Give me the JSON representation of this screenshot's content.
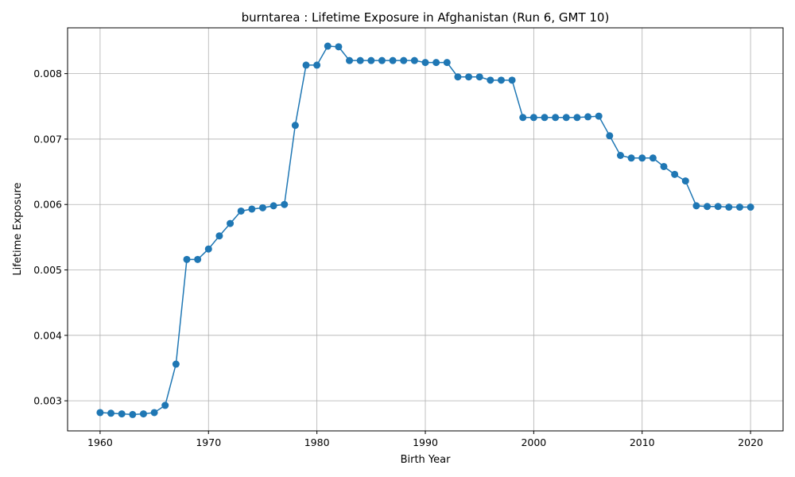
{
  "chart_data": {
    "type": "line",
    "title": "burntarea : Lifetime Exposure in Afghanistan (Run 6, GMT 10)",
    "xlabel": "Birth Year",
    "ylabel": "Lifetime Exposure",
    "xlim": [
      1957,
      2023
    ],
    "ylim": [
      0.00254,
      0.0087
    ],
    "x_ticks": [
      1960,
      1970,
      1980,
      1990,
      2000,
      2010,
      2020
    ],
    "y_ticks": [
      0.003,
      0.004,
      0.005,
      0.006,
      0.007,
      0.008
    ],
    "x_tick_labels": [
      "1960",
      "1970",
      "1980",
      "1990",
      "2000",
      "2010",
      "2020"
    ],
    "y_tick_labels": [
      "0.003",
      "0.004",
      "0.005",
      "0.006",
      "0.007",
      "0.008"
    ],
    "grid": true,
    "legend": false,
    "marker": "circle",
    "color": "#1f77b4",
    "series": [
      {
        "x": [
          1960,
          1961,
          1962,
          1963,
          1964,
          1965,
          1966,
          1967,
          1968,
          1969,
          1970,
          1971,
          1972,
          1973,
          1974,
          1975,
          1976,
          1977,
          1978,
          1979,
          1980,
          1981,
          1982,
          1983,
          1984,
          1985,
          1986,
          1987,
          1988,
          1989,
          1990,
          1991,
          1992,
          1993,
          1994,
          1995,
          1996,
          1997,
          1998,
          1999,
          2000,
          2001,
          2002,
          2003,
          2004,
          2005,
          2006,
          2007,
          2008,
          2009,
          2010,
          2011,
          2012,
          2013,
          2014,
          2015,
          2016,
          2017,
          2018,
          2019,
          2020
        ],
        "values": [
          0.00282,
          0.00281,
          0.0028,
          0.00279,
          0.0028,
          0.00282,
          0.00293,
          0.00356,
          0.00516,
          0.00516,
          0.00532,
          0.00552,
          0.00571,
          0.0059,
          0.00593,
          0.00595,
          0.00598,
          0.006,
          0.00721,
          0.00813,
          0.00813,
          0.00842,
          0.00841,
          0.0082,
          0.0082,
          0.0082,
          0.0082,
          0.0082,
          0.0082,
          0.0082,
          0.00817,
          0.00817,
          0.00817,
          0.00795,
          0.00795,
          0.00795,
          0.0079,
          0.0079,
          0.0079,
          0.00733,
          0.00733,
          0.00733,
          0.00733,
          0.00733,
          0.00733,
          0.00734,
          0.00735,
          0.00705,
          0.00675,
          0.00671,
          0.00671,
          0.00671,
          0.00658,
          0.00646,
          0.00636,
          0.00598,
          0.00597,
          0.00597,
          0.00596,
          0.00596,
          0.00596
        ]
      }
    ]
  }
}
